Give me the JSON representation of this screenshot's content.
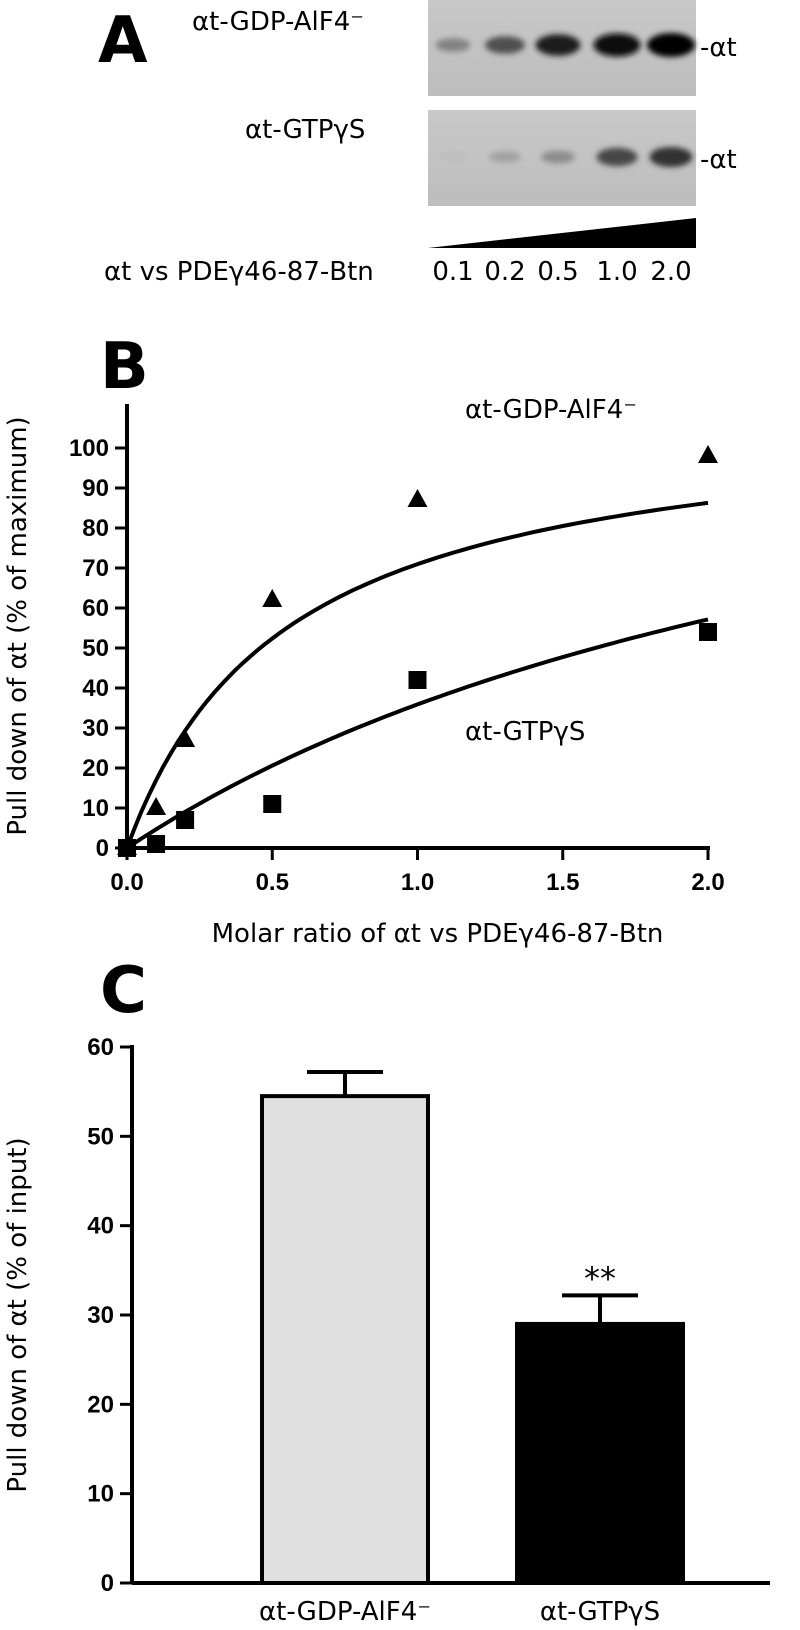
{
  "panel_a": {
    "letter": "A",
    "blots": [
      {
        "label": "αt-GDP-AlF4⁻",
        "band_label": "-αt",
        "intensities": [
          0.35,
          0.6,
          0.85,
          0.95,
          1.0
        ]
      },
      {
        "label": "αt-GTPγS",
        "band_label": "-αt",
        "intensities": [
          0.05,
          0.2,
          0.3,
          0.65,
          0.75
        ]
      }
    ],
    "ratio_label": "αt vs PDEγ46-87-Btn",
    "ratios": [
      "0.1",
      "0.2",
      "0.5",
      "1.0",
      "2.0"
    ]
  },
  "chart_data": [
    {
      "type": "scatter",
      "panel": "B",
      "xlabel": "Molar ratio of αt vs PDEγ46-87-Btn",
      "ylabel": "Pull down of αt (% of maximum)",
      "xlim": [
        0,
        2.0
      ],
      "ylim": [
        0,
        100
      ],
      "xticks": [
        "0.0",
        "0.5",
        "1.0",
        "1.5",
        "2.0"
      ],
      "yticks": [
        "0",
        "10",
        "20",
        "30",
        "40",
        "50",
        "60",
        "70",
        "80",
        "90",
        "100"
      ],
      "series": [
        {
          "name": "αt-GDP-AlF4⁻",
          "marker": "triangle",
          "x": [
            0,
            0.1,
            0.2,
            0.5,
            1.0,
            2.0
          ],
          "y": [
            0,
            10,
            27,
            62,
            87,
            98
          ],
          "fit": {
            "max": 110,
            "k": 0.55
          }
        },
        {
          "name": "αt-GTPγS",
          "marker": "square",
          "x": [
            0,
            0.1,
            0.2,
            0.5,
            1.0,
            2.0
          ],
          "y": [
            0,
            1,
            7,
            11,
            42,
            54
          ],
          "fit": {
            "max": 140,
            "k": 2.9
          }
        }
      ]
    },
    {
      "type": "bar",
      "panel": "C",
      "categories": [
        "αt-GDP-AlF4⁻",
        "αt-GTPγS"
      ],
      "values": [
        54.5,
        29
      ],
      "errors": [
        2.7,
        3.2
      ],
      "colors": [
        "#e0e0e0",
        "#000000"
      ],
      "significance": [
        "",
        "**"
      ],
      "ylabel": "Pull down of αt (% of input)",
      "ylim": [
        0,
        60
      ],
      "yticks": [
        "0",
        "10",
        "20",
        "30",
        "40",
        "50",
        "60"
      ]
    }
  ],
  "panel_letters": {
    "b": "B",
    "c": "C"
  }
}
